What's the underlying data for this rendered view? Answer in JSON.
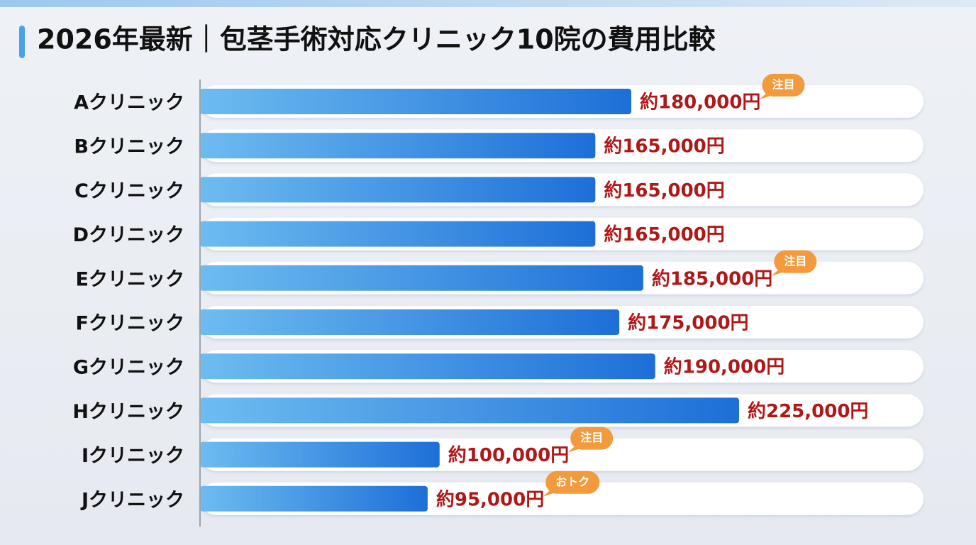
{
  "chart_data": {
    "type": "bar",
    "orientation": "horizontal",
    "title": "2026年最新｜包茎手術対応クリニック10院の費用比較",
    "categories": [
      "Aクリニック",
      "Bクリニック",
      "Cクリニック",
      "Dクリニック",
      "Eクリニック",
      "Fクリニック",
      "Gクリニック",
      "Hクリニック",
      "Iクリニック",
      "Jクリニック"
    ],
    "values": [
      180000,
      165000,
      165000,
      165000,
      185000,
      175000,
      190000,
      225000,
      100000,
      95000
    ],
    "value_labels": [
      "約180,000円",
      "約165,000円",
      "約165,000円",
      "約165,000円",
      "約185,000円",
      "約175,000円",
      "約190,000円",
      "約225,000円",
      "約100,000円",
      "約95,000円"
    ],
    "badges": [
      "注目",
      null,
      null,
      null,
      "注目",
      null,
      null,
      null,
      "注目",
      "おトク"
    ],
    "color": "#2a7fe0",
    "label_color": "#b01818",
    "badge_color": "#f39a3c"
  }
}
